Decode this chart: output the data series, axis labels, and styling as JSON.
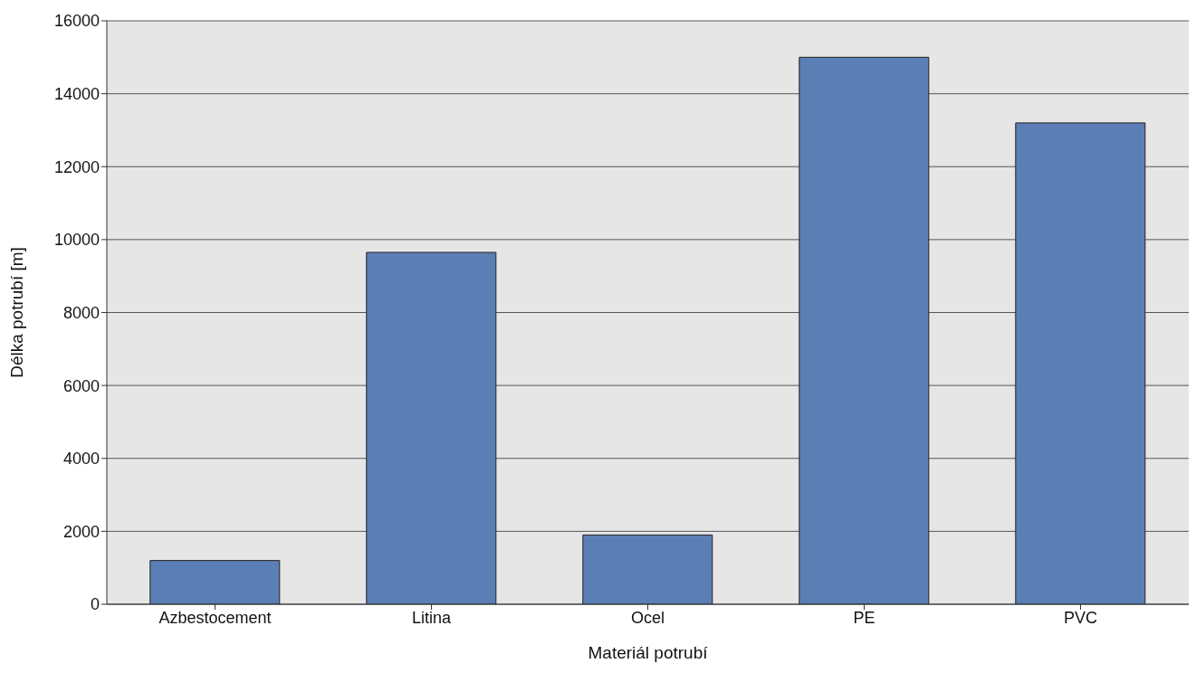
{
  "chart_data": {
    "type": "bar",
    "xlabel": "Materiál potrubí",
    "ylabel": "Délka potrubí [m]",
    "categories": [
      "Azbestocement",
      "Litina",
      "Ocel",
      "PE",
      "PVC"
    ],
    "values": [
      1200,
      9650,
      1900,
      15000,
      13200
    ],
    "color": "#5b7fb5",
    "ylim": [
      0,
      16000
    ],
    "yticks": [
      0,
      2000,
      4000,
      6000,
      8000,
      10000,
      12000,
      14000,
      16000
    ],
    "grid": "y"
  }
}
